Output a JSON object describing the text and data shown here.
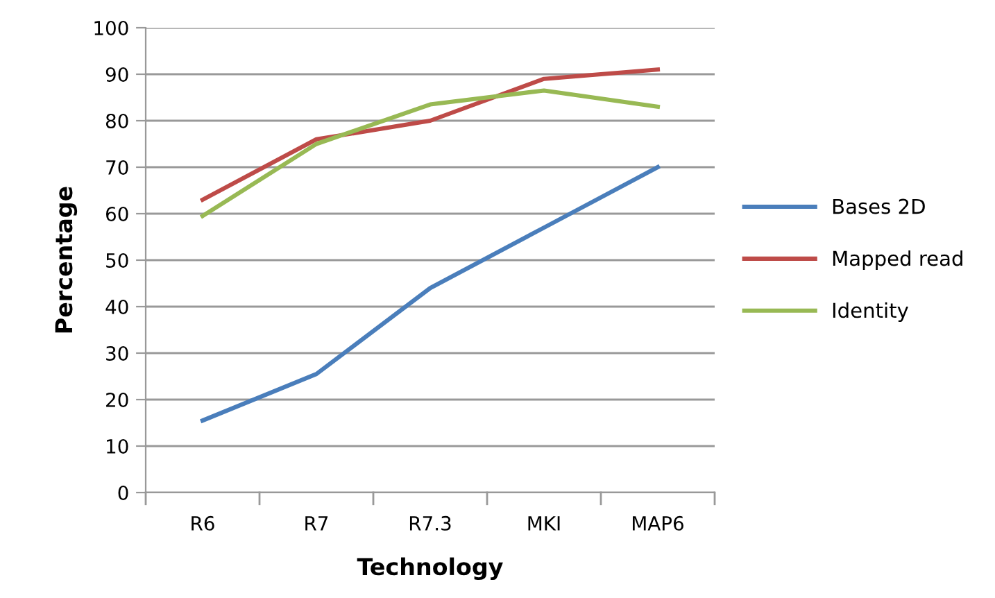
{
  "chart_data": {
    "type": "line",
    "xlabel": "Technology",
    "ylabel": "Percentage",
    "categories": [
      "R6",
      "R7",
      "R7.3",
      "MKI",
      "MAP6"
    ],
    "series": [
      {
        "name": "Bases 2D",
        "color": "#4a7ebb",
        "values": [
          15.5,
          25.5,
          44,
          57,
          70
        ]
      },
      {
        "name": "Mapped read",
        "color": "#be4b48",
        "values": [
          63,
          76,
          80,
          89,
          91
        ]
      },
      {
        "name": "Identity",
        "color": "#98b954",
        "values": [
          59.5,
          75,
          83.5,
          86.5,
          83
        ]
      }
    ],
    "ylim": [
      0,
      100
    ],
    "yticks": [
      0,
      10,
      20,
      30,
      40,
      50,
      60,
      70,
      80,
      90,
      100
    ],
    "grid": "y",
    "legend": "right",
    "marker": "none"
  }
}
